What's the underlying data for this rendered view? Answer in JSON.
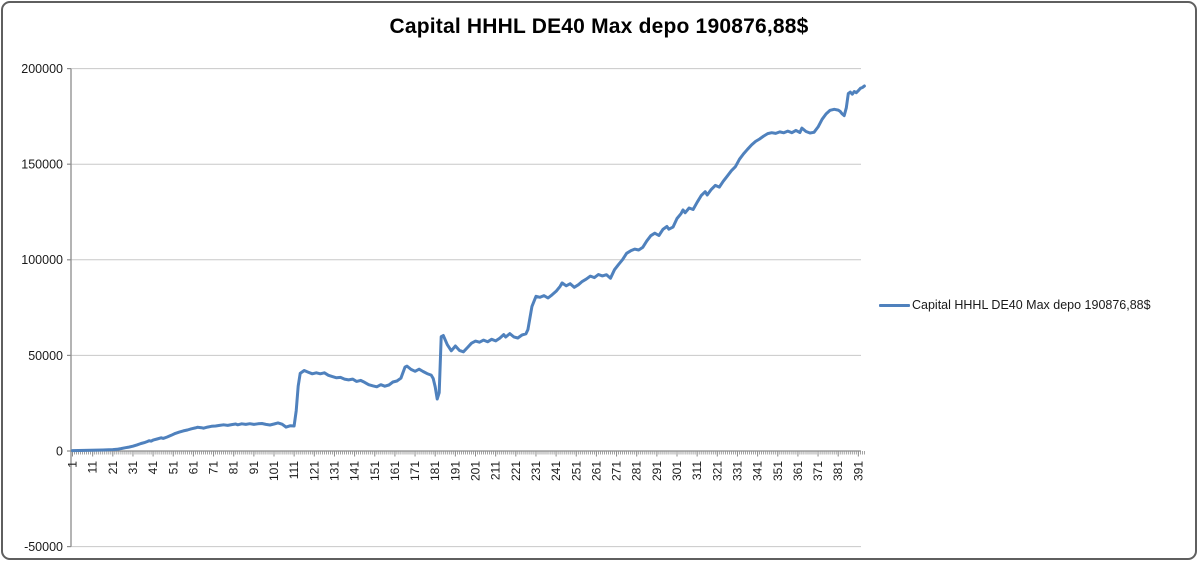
{
  "title": "Capital HHHL DE40 Max depo 190876,88$",
  "legend": {
    "label": "Capital HHHL DE40 Max depo 190876,88$"
  },
  "chart_data": {
    "type": "line",
    "title": "Capital HHHL DE40 Max depo 190876,88$",
    "xlabel": "",
    "ylabel": "",
    "x_range": [
      1,
      394
    ],
    "ylim": [
      -50000,
      200000
    ],
    "y_ticks": [
      -50000,
      0,
      50000,
      100000,
      150000,
      200000
    ],
    "x_tick_labels": [
      "1",
      "11",
      "21",
      "31",
      "41",
      "51",
      "61",
      "71",
      "81",
      "91",
      "101",
      "111",
      "121",
      "131",
      "141",
      "151",
      "161",
      "171",
      "181",
      "191",
      "201",
      "211",
      "221",
      "231",
      "241",
      "251",
      "261",
      "271",
      "281",
      "291",
      "301",
      "311",
      "321",
      "331",
      "341",
      "351",
      "361",
      "371",
      "381",
      "391"
    ],
    "grid": "horizontal",
    "legend_position": "right-middle",
    "colors": {
      "series": "#4F81BD",
      "gridline": "#C8C8C8",
      "axis": "#8C8C8C",
      "tick_label": "#1a1a1a",
      "background": "#FFFFFF",
      "frame_border": "#5f5f5f"
    },
    "series": [
      {
        "name": "Capital HHHL DE40 Max depo 190876,88$",
        "color": "#4F81BD",
        "final_value": 190876.88,
        "points": [
          [
            1,
            200
          ],
          [
            4,
            280
          ],
          [
            7,
            330
          ],
          [
            10,
            390
          ],
          [
            13,
            450
          ],
          [
            16,
            520
          ],
          [
            19,
            640
          ],
          [
            21,
            750
          ],
          [
            23,
            900
          ],
          [
            25,
            1250
          ],
          [
            27,
            1650
          ],
          [
            29,
            2050
          ],
          [
            31,
            2500
          ],
          [
            33,
            3200
          ],
          [
            35,
            3900
          ],
          [
            37,
            4500
          ],
          [
            38,
            4900
          ],
          [
            39,
            5400
          ],
          [
            40,
            5200
          ],
          [
            41,
            5700
          ],
          [
            43,
            6300
          ],
          [
            45,
            6900
          ],
          [
            46,
            6600
          ],
          [
            48,
            7300
          ],
          [
            50,
            8200
          ],
          [
            52,
            9200
          ],
          [
            54,
            9900
          ],
          [
            56,
            10500
          ],
          [
            58,
            11000
          ],
          [
            60,
            11600
          ],
          [
            62,
            12100
          ],
          [
            63,
            12400
          ],
          [
            65,
            12200
          ],
          [
            66,
            11900
          ],
          [
            68,
            12500
          ],
          [
            70,
            12900
          ],
          [
            72,
            13100
          ],
          [
            74,
            13400
          ],
          [
            76,
            13700
          ],
          [
            78,
            13400
          ],
          [
            80,
            13800
          ],
          [
            82,
            14100
          ],
          [
            83,
            13700
          ],
          [
            85,
            14200
          ],
          [
            87,
            13900
          ],
          [
            89,
            14300
          ],
          [
            91,
            13900
          ],
          [
            93,
            14200
          ],
          [
            95,
            14400
          ],
          [
            97,
            13900
          ],
          [
            99,
            13600
          ],
          [
            101,
            14100
          ],
          [
            103,
            14700
          ],
          [
            105,
            14000
          ],
          [
            107,
            12500
          ],
          [
            109,
            13200
          ],
          [
            111,
            13100
          ],
          [
            112,
            21000
          ],
          [
            113,
            34000
          ],
          [
            114,
            40600
          ],
          [
            116,
            42100
          ],
          [
            118,
            41200
          ],
          [
            120,
            40400
          ],
          [
            122,
            40900
          ],
          [
            124,
            40400
          ],
          [
            126,
            40900
          ],
          [
            128,
            39600
          ],
          [
            130,
            38900
          ],
          [
            132,
            38300
          ],
          [
            134,
            38500
          ],
          [
            136,
            37600
          ],
          [
            138,
            37200
          ],
          [
            140,
            37600
          ],
          [
            142,
            36400
          ],
          [
            144,
            36900
          ],
          [
            146,
            35900
          ],
          [
            148,
            34700
          ],
          [
            150,
            34100
          ],
          [
            152,
            33600
          ],
          [
            154,
            34700
          ],
          [
            156,
            33900
          ],
          [
            158,
            34500
          ],
          [
            160,
            36100
          ],
          [
            162,
            36600
          ],
          [
            164,
            38100
          ],
          [
            166,
            43900
          ],
          [
            167,
            44400
          ],
          [
            169,
            42700
          ],
          [
            171,
            41700
          ],
          [
            173,
            42800
          ],
          [
            175,
            41600
          ],
          [
            177,
            40500
          ],
          [
            179,
            39700
          ],
          [
            180,
            37900
          ],
          [
            181,
            33500
          ],
          [
            182,
            27200
          ],
          [
            183,
            30500
          ],
          [
            184,
            59800
          ],
          [
            185,
            60400
          ],
          [
            187,
            55600
          ],
          [
            189,
            52400
          ],
          [
            191,
            54900
          ],
          [
            193,
            52600
          ],
          [
            195,
            51900
          ],
          [
            197,
            54100
          ],
          [
            199,
            56400
          ],
          [
            201,
            57500
          ],
          [
            203,
            56900
          ],
          [
            205,
            58000
          ],
          [
            207,
            57100
          ],
          [
            209,
            58400
          ],
          [
            211,
            57600
          ],
          [
            213,
            59000
          ],
          [
            215,
            60900
          ],
          [
            216,
            59600
          ],
          [
            218,
            61400
          ],
          [
            220,
            59700
          ],
          [
            222,
            59100
          ],
          [
            224,
            60600
          ],
          [
            226,
            61300
          ],
          [
            227,
            63500
          ],
          [
            229,
            75500
          ],
          [
            231,
            80900
          ],
          [
            233,
            80400
          ],
          [
            235,
            81300
          ],
          [
            237,
            80000
          ],
          [
            239,
            81700
          ],
          [
            241,
            83500
          ],
          [
            243,
            86100
          ],
          [
            244,
            87900
          ],
          [
            246,
            86400
          ],
          [
            248,
            87500
          ],
          [
            250,
            85600
          ],
          [
            252,
            86900
          ],
          [
            254,
            88700
          ],
          [
            256,
            89900
          ],
          [
            258,
            91500
          ],
          [
            260,
            90700
          ],
          [
            262,
            92300
          ],
          [
            264,
            91600
          ],
          [
            266,
            92200
          ],
          [
            268,
            90400
          ],
          [
            270,
            94800
          ],
          [
            272,
            97600
          ],
          [
            274,
            100100
          ],
          [
            276,
            103400
          ],
          [
            278,
            104700
          ],
          [
            280,
            105600
          ],
          [
            282,
            105100
          ],
          [
            284,
            106500
          ],
          [
            286,
            109900
          ],
          [
            288,
            112600
          ],
          [
            290,
            113900
          ],
          [
            292,
            112700
          ],
          [
            294,
            115900
          ],
          [
            296,
            117400
          ],
          [
            297,
            116000
          ],
          [
            299,
            117100
          ],
          [
            301,
            121600
          ],
          [
            303,
            124100
          ],
          [
            304,
            126100
          ],
          [
            305,
            124600
          ],
          [
            307,
            127100
          ],
          [
            309,
            126300
          ],
          [
            311,
            130100
          ],
          [
            313,
            133600
          ],
          [
            315,
            135600
          ],
          [
            316,
            133900
          ],
          [
            318,
            136800
          ],
          [
            320,
            138900
          ],
          [
            322,
            138000
          ],
          [
            324,
            141100
          ],
          [
            326,
            143900
          ],
          [
            328,
            146600
          ],
          [
            330,
            148700
          ],
          [
            332,
            152600
          ],
          [
            334,
            155400
          ],
          [
            336,
            157800
          ],
          [
            338,
            160100
          ],
          [
            340,
            161900
          ],
          [
            342,
            163200
          ],
          [
            344,
            164700
          ],
          [
            346,
            166000
          ],
          [
            348,
            166500
          ],
          [
            350,
            166100
          ],
          [
            352,
            166900
          ],
          [
            354,
            166400
          ],
          [
            356,
            167300
          ],
          [
            358,
            166500
          ],
          [
            360,
            167700
          ],
          [
            362,
            166600
          ],
          [
            363,
            168900
          ],
          [
            365,
            167100
          ],
          [
            367,
            166300
          ],
          [
            369,
            166700
          ],
          [
            371,
            169500
          ],
          [
            373,
            173500
          ],
          [
            375,
            176300
          ],
          [
            377,
            178200
          ],
          [
            379,
            178700
          ],
          [
            381,
            178300
          ],
          [
            382,
            177600
          ],
          [
            383,
            176300
          ],
          [
            384,
            175400
          ],
          [
            385,
            179500
          ],
          [
            386,
            186900
          ],
          [
            387,
            187700
          ],
          [
            388,
            186600
          ],
          [
            389,
            188000
          ],
          [
            390,
            187400
          ],
          [
            391,
            188500
          ],
          [
            392,
            189700
          ],
          [
            393,
            190100
          ],
          [
            394,
            190877
          ]
        ]
      }
    ]
  }
}
